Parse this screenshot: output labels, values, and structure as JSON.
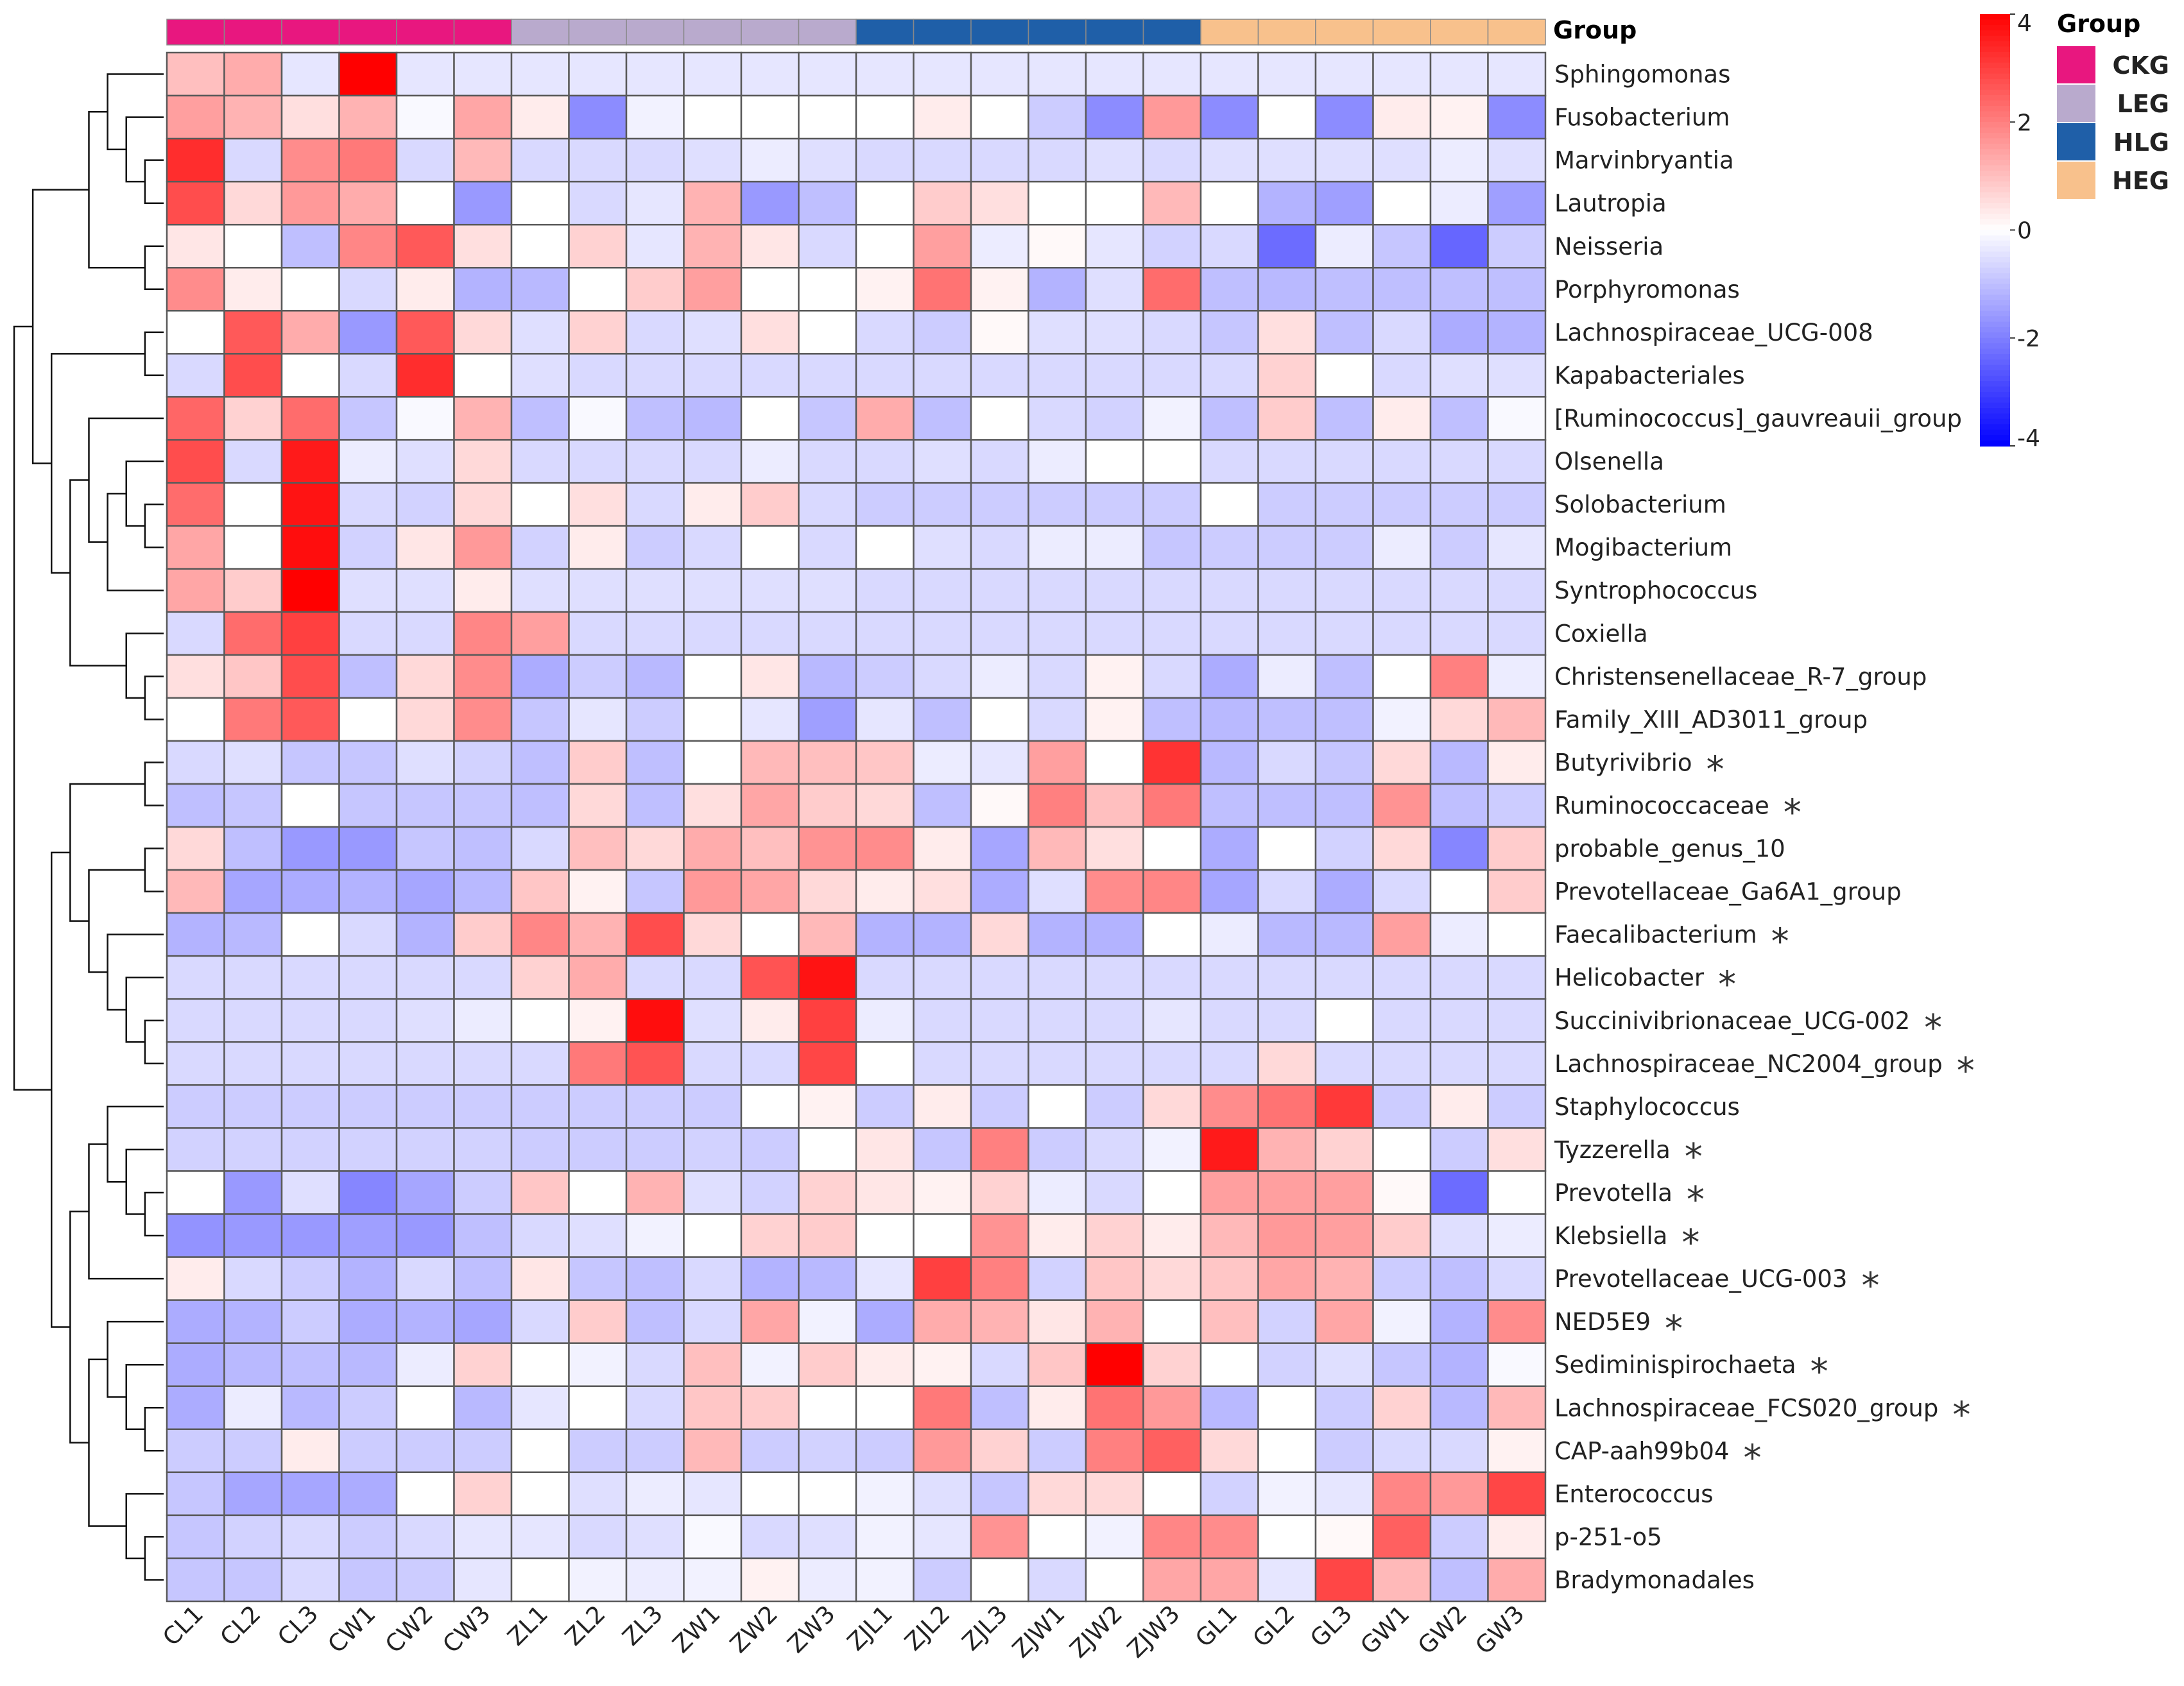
{
  "chart_data": {
    "type": "heatmap",
    "title": "",
    "color_scale": {
      "min": -4,
      "max": 4,
      "low": "#0000ff",
      "mid": "#ffffff",
      "high": "#ff0000",
      "ticks": [
        "4",
        "2",
        "0",
        "-2",
        "-4"
      ]
    },
    "annotation_title": "Group",
    "legend_title": "Group",
    "groups": [
      {
        "name": "CKG",
        "color": "#e8177f"
      },
      {
        "name": "LEG",
        "color": "#b9aacd"
      },
      {
        "name": "HLG",
        "color": "#1f5fa8"
      },
      {
        "name": "HEG",
        "color": "#f8c18c"
      }
    ],
    "columns": [
      "CL1",
      "CL2",
      "CL3",
      "CW1",
      "CW2",
      "CW3",
      "ZL1",
      "ZL2",
      "ZL3",
      "ZW1",
      "ZW2",
      "ZW3",
      "ZJL1",
      "ZJL2",
      "ZJL3",
      "ZJW1",
      "ZJW2",
      "ZJW3",
      "GL1",
      "GL2",
      "GL3",
      "GW1",
      "GW2",
      "GW3"
    ],
    "column_groups": [
      "CKG",
      "CKG",
      "CKG",
      "CKG",
      "CKG",
      "CKG",
      "LEG",
      "LEG",
      "LEG",
      "LEG",
      "LEG",
      "LEG",
      "HLG",
      "HLG",
      "HLG",
      "HLG",
      "HLG",
      "HLG",
      "HEG",
      "HEG",
      "HEG",
      "HEG",
      "HEG",
      "HEG"
    ],
    "rows": [
      {
        "name": "Sphingomonas",
        "sig": "",
        "values": [
          1,
          1.3,
          -0.4,
          4,
          -0.4,
          -0.4,
          -0.4,
          -0.4,
          -0.4,
          -0.4,
          -0.4,
          -0.4,
          -0.4,
          -0.4,
          -0.4,
          -0.4,
          -0.4,
          -0.4,
          -0.4,
          -0.4,
          -0.4,
          -0.4,
          -0.4,
          -0.4
        ]
      },
      {
        "name": "Fusobacterium",
        "sig": "",
        "values": [
          1.5,
          1.2,
          0.5,
          1.2,
          -0.1,
          1.4,
          0.3,
          -1.8,
          -0.2,
          0,
          0,
          0,
          0,
          0.3,
          0,
          -0.8,
          -1.8,
          1.6,
          -1.8,
          0,
          -1.8,
          0.3,
          0.2,
          -1.8
        ]
      },
      {
        "name": "Marvinbryantia",
        "sig": "",
        "values": [
          3.3,
          -0.6,
          1.8,
          2.1,
          -0.6,
          1.1,
          -0.6,
          -0.6,
          -0.6,
          -0.5,
          -0.3,
          -0.5,
          -0.6,
          -0.6,
          -0.6,
          -0.6,
          -0.5,
          -0.6,
          -0.5,
          -0.5,
          -0.5,
          -0.5,
          -0.3,
          -0.5
        ]
      },
      {
        "name": "Lautropia",
        "sig": "",
        "values": [
          2.8,
          0.6,
          1.6,
          1.3,
          0,
          -1.6,
          0,
          -0.6,
          -0.4,
          1.2,
          -1.6,
          -1,
          0,
          0.8,
          0.5,
          0,
          0,
          1.1,
          0,
          -1.2,
          -1.5,
          0,
          -0.3,
          -1.5
        ]
      },
      {
        "name": "Neisseria",
        "sig": "",
        "values": [
          0.4,
          0,
          -1,
          1.9,
          2.6,
          0.5,
          0,
          0.7,
          -0.4,
          1.2,
          0.4,
          -0.6,
          0,
          1.5,
          -0.3,
          0.1,
          -0.4,
          -0.7,
          -0.6,
          -2.3,
          -0.3,
          -0.9,
          -2.4,
          -0.8
        ]
      },
      {
        "name": "Porphyromonas",
        "sig": "",
        "values": [
          1.8,
          0.3,
          0,
          -0.6,
          0.3,
          -1.2,
          -1.1,
          0,
          0.8,
          1.5,
          0,
          0,
          0.2,
          2.2,
          0.2,
          -1.2,
          -0.5,
          2.3,
          -1,
          -1.1,
          -1,
          -1,
          -1,
          -1
        ]
      },
      {
        "name": "Lachnospiraceae_UCG-008",
        "sig": "",
        "values": [
          0,
          2.6,
          1.3,
          -1.6,
          2.6,
          0.6,
          -0.5,
          0.7,
          -0.6,
          -0.5,
          0.5,
          0,
          -0.6,
          -0.8,
          0.1,
          -0.5,
          -0.5,
          -0.6,
          -0.9,
          0.5,
          -1,
          -0.6,
          -1.3,
          -1.2
        ]
      },
      {
        "name": "Kapabacteriales",
        "sig": "",
        "values": [
          -0.6,
          2.8,
          0,
          -0.6,
          3.3,
          0,
          -0.5,
          -0.6,
          -0.6,
          -0.6,
          -0.6,
          -0.6,
          -0.6,
          -0.6,
          -0.6,
          -0.6,
          -0.6,
          -0.6,
          -0.6,
          0.7,
          0,
          -0.6,
          -0.5,
          -0.5
        ]
      },
      {
        "name": "[Ruminococcus]_gauvreauii_group",
        "sig": "",
        "values": [
          2.4,
          0.7,
          2.3,
          -0.9,
          -0.1,
          1.2,
          -1,
          -0.1,
          -1,
          -1.1,
          0,
          -0.9,
          1.3,
          -1,
          0,
          -0.6,
          -0.7,
          -0.2,
          -1,
          0.8,
          -1,
          0.3,
          -1,
          -0.1
        ]
      },
      {
        "name": "Olsenella",
        "sig": "",
        "values": [
          2.8,
          -0.6,
          3.6,
          -0.3,
          -0.5,
          0.6,
          -0.6,
          -0.6,
          -0.6,
          -0.6,
          -0.3,
          -0.6,
          -0.6,
          -0.5,
          -0.6,
          -0.3,
          0,
          0,
          -0.6,
          -0.6,
          -0.6,
          -0.6,
          -0.6,
          -0.6
        ]
      },
      {
        "name": "Solobacterium",
        "sig": "",
        "values": [
          2.3,
          0,
          3.7,
          -0.6,
          -0.7,
          0.6,
          0,
          0.5,
          -0.6,
          0.3,
          0.8,
          -0.6,
          -0.8,
          -0.8,
          -0.8,
          -0.8,
          -0.8,
          -0.8,
          0,
          -0.8,
          -0.8,
          -0.8,
          -0.8,
          -0.8
        ]
      },
      {
        "name": "Mogibacterium",
        "sig": "",
        "values": [
          1.4,
          0,
          3.8,
          -0.7,
          0.4,
          1.6,
          -0.7,
          0.3,
          -0.8,
          -0.6,
          0,
          -0.6,
          0,
          -0.5,
          -0.6,
          -0.3,
          -0.3,
          -0.9,
          -0.8,
          -0.8,
          -0.8,
          -0.3,
          -0.8,
          -0.4
        ]
      },
      {
        "name": "Syntrophococcus",
        "sig": "",
        "values": [
          1.4,
          0.8,
          4,
          -0.5,
          -0.5,
          0.3,
          -0.5,
          -0.5,
          -0.5,
          -0.5,
          -0.5,
          -0.5,
          -0.6,
          -0.6,
          -0.6,
          -0.6,
          -0.6,
          -0.6,
          -0.6,
          -0.6,
          -0.6,
          -0.6,
          -0.6,
          -0.6
        ]
      },
      {
        "name": "Coxiella",
        "sig": "",
        "values": [
          -0.6,
          2.3,
          3,
          -0.6,
          -0.6,
          1.9,
          1.5,
          -0.6,
          -0.6,
          -0.6,
          -0.6,
          -0.6,
          -0.6,
          -0.6,
          -0.6,
          -0.6,
          -0.6,
          -0.6,
          -0.6,
          -0.6,
          -0.6,
          -0.6,
          -0.6,
          -0.6
        ]
      },
      {
        "name": "Christensenellaceae_R-7_group",
        "sig": "",
        "values": [
          0.5,
          0.9,
          2.8,
          -1,
          0.6,
          1.8,
          -1.3,
          -0.8,
          -1.1,
          0,
          0.4,
          -1.1,
          -0.8,
          -0.6,
          -0.3,
          -0.6,
          0.2,
          -0.6,
          -1.3,
          -0.3,
          -1,
          0,
          2,
          -0.3
        ]
      },
      {
        "name": "Family_XIII_AD3011_group",
        "sig": "",
        "values": [
          0,
          2.1,
          2.6,
          0,
          0.6,
          1.8,
          -0.9,
          -0.4,
          -0.8,
          0,
          -0.4,
          -1.5,
          -0.4,
          -1,
          0,
          -0.6,
          0.2,
          -1,
          -1.1,
          -1,
          -1,
          -0.2,
          0.6,
          1.1
        ]
      },
      {
        "name": "Butyrivibrio",
        "sig": "*",
        "values": [
          -0.6,
          -0.5,
          -0.9,
          -0.9,
          -0.5,
          -0.7,
          -1,
          0.8,
          -1,
          0,
          1.1,
          1,
          0.9,
          -0.3,
          -0.4,
          1.5,
          0,
          3.2,
          -1.1,
          -0.6,
          -0.9,
          0.6,
          -1.1,
          0.3
        ]
      },
      {
        "name": "Ruminococcaceae",
        "sig": "*",
        "values": [
          -1,
          -0.9,
          0,
          -0.9,
          -0.9,
          -0.9,
          -1,
          0.6,
          -1,
          0.5,
          1.4,
          0.8,
          0.6,
          -1,
          0.1,
          2,
          1,
          2.1,
          -1,
          -1,
          -1,
          1.7,
          -1,
          -0.8
        ]
      },
      {
        "name": "probable_genus_10",
        "sig": "",
        "values": [
          0.6,
          -1,
          -1.6,
          -1.6,
          -0.9,
          -1,
          -0.6,
          1,
          0.6,
          1.3,
          1,
          1.7,
          1.8,
          0.3,
          -1.4,
          1.1,
          0.5,
          0,
          -1.3,
          0,
          -0.7,
          0.6,
          -1.9,
          0.8
        ]
      },
      {
        "name": "Prevotellaceae_Ga6A1_group",
        "sig": "",
        "values": [
          1.1,
          -1.4,
          -1.3,
          -1.2,
          -1.4,
          -1.1,
          0.9,
          0.2,
          -0.9,
          1.6,
          1.4,
          0.6,
          0.3,
          0.5,
          -1.3,
          -0.5,
          1.8,
          1.9,
          -1.4,
          -0.6,
          -1.3,
          -0.6,
          0,
          0.8
        ]
      },
      {
        "name": "Faecalibacterium",
        "sig": "*",
        "values": [
          -1.2,
          -1.1,
          0,
          -0.6,
          -1.2,
          0.8,
          1.9,
          1.2,
          2.8,
          0.6,
          0,
          1.1,
          -1.2,
          -1.2,
          0.6,
          -1.2,
          -1.2,
          0,
          -0.3,
          -1.1,
          -1.1,
          1.5,
          -0.3,
          0
        ]
      },
      {
        "name": "Helicobacter",
        "sig": "*",
        "values": [
          -0.6,
          -0.6,
          -0.6,
          -0.6,
          -0.6,
          -0.6,
          0.7,
          1.3,
          -0.6,
          -0.6,
          2.7,
          3.7,
          -0.6,
          -0.6,
          -0.6,
          -0.6,
          -0.6,
          -0.6,
          -0.6,
          -0.6,
          -0.6,
          -0.6,
          -0.6,
          -0.6
        ]
      },
      {
        "name": "Succinivibrionaceae_UCG-002",
        "sig": "*",
        "values": [
          -0.6,
          -0.6,
          -0.6,
          -0.6,
          -0.5,
          -0.3,
          0,
          0.2,
          3.8,
          -0.5,
          0.3,
          3,
          -0.3,
          -0.6,
          -0.6,
          -0.6,
          -0.6,
          -0.4,
          -0.6,
          -0.6,
          0,
          -0.6,
          -0.6,
          -0.6
        ]
      },
      {
        "name": "Lachnospiraceae_NC2004_group",
        "sig": "*",
        "values": [
          -0.6,
          -0.6,
          -0.6,
          -0.6,
          -0.6,
          -0.6,
          -0.6,
          2.1,
          2.7,
          -0.6,
          -0.6,
          2.9,
          0,
          -0.6,
          -0.6,
          -0.6,
          -0.6,
          -0.6,
          -0.6,
          0.6,
          -0.6,
          -0.6,
          -0.6,
          -0.6
        ]
      },
      {
        "name": "Staphylococcus",
        "sig": "",
        "values": [
          -0.8,
          -0.8,
          -0.8,
          -0.8,
          -0.8,
          -0.8,
          -0.8,
          -0.8,
          -0.8,
          -0.8,
          0,
          0.2,
          -0.8,
          0.3,
          -0.8,
          0,
          -0.8,
          0.6,
          1.8,
          2.2,
          3.1,
          -0.8,
          0.3,
          -0.8
        ]
      },
      {
        "name": "Tyzzerella",
        "sig": "*",
        "values": [
          -0.7,
          -0.7,
          -0.7,
          -0.7,
          -0.7,
          -0.7,
          -0.8,
          -0.8,
          -0.8,
          -0.7,
          -0.8,
          0,
          0.4,
          -0.9,
          2,
          -0.8,
          -0.6,
          -0.2,
          3.6,
          1.2,
          0.7,
          0,
          -0.8,
          0.5
        ]
      },
      {
        "name": "Prevotella",
        "sig": "*",
        "values": [
          0,
          -1.6,
          -0.5,
          -1.9,
          -1.4,
          -0.8,
          0.9,
          0,
          1.2,
          -0.5,
          -0.7,
          0.7,
          0.4,
          0.2,
          0.7,
          -0.3,
          -0.6,
          0,
          1.5,
          1.5,
          1.5,
          0.1,
          -2.3,
          0
        ]
      },
      {
        "name": "Klebsiella",
        "sig": "*",
        "values": [
          -1.7,
          -1.6,
          -1.6,
          -1.5,
          -1.6,
          -1,
          -0.6,
          -0.5,
          -0.2,
          0,
          0.7,
          0.8,
          0,
          0,
          1.7,
          0.3,
          0.7,
          0.3,
          1.1,
          1.6,
          1.5,
          0.8,
          -0.5,
          -0.3
        ]
      },
      {
        "name": "Prevotellaceae_UCG-003",
        "sig": "*",
        "values": [
          0.3,
          -0.6,
          -0.8,
          -1.2,
          -0.6,
          -1,
          0.4,
          -0.9,
          -1,
          -0.6,
          -1.2,
          -1.1,
          -0.4,
          3,
          2,
          -0.7,
          0.9,
          0.6,
          0.9,
          1.4,
          1.2,
          -0.8,
          -1,
          -0.6
        ]
      },
      {
        "name": "NED5E9",
        "sig": "*",
        "values": [
          -1.3,
          -1.2,
          -0.8,
          -1.3,
          -1.2,
          -1.4,
          -0.6,
          0.8,
          -1,
          -0.6,
          1.4,
          -0.2,
          -1.3,
          1.3,
          1.2,
          0.4,
          1.2,
          0,
          1,
          -0.7,
          1.4,
          -0.2,
          -1.2,
          1.8
        ]
      },
      {
        "name": "Sediminispirochaeta",
        "sig": "*",
        "values": [
          -1.3,
          -1.1,
          -1,
          -1.1,
          -0.3,
          0.7,
          0,
          -0.2,
          -0.6,
          1,
          -0.2,
          0.8,
          0.3,
          0.2,
          -0.6,
          0.9,
          4,
          0.7,
          0,
          -0.7,
          -0.5,
          -0.9,
          -1.2,
          -0.1
        ]
      },
      {
        "name": "Lachnospiraceae_FCS020_group",
        "sig": "*",
        "values": [
          -1.3,
          -0.3,
          -1.1,
          -0.8,
          0,
          -1.1,
          -0.4,
          0,
          -0.6,
          0.9,
          0.8,
          0,
          0,
          2.1,
          -1,
          0.3,
          2.2,
          1.6,
          -1.1,
          0,
          -0.8,
          0.7,
          -1.1,
          1.1
        ]
      },
      {
        "name": "CAP-aah99b04",
        "sig": "*",
        "values": [
          -0.8,
          -0.8,
          0.3,
          -0.8,
          -0.8,
          -0.8,
          0,
          -0.8,
          -0.8,
          1.1,
          -0.8,
          -0.7,
          -0.8,
          1.6,
          0.7,
          -0.8,
          2,
          2.5,
          0.6,
          0,
          -0.8,
          -0.6,
          -0.6,
          0.2
        ]
      },
      {
        "name": "Enterococcus",
        "sig": "",
        "values": [
          -0.9,
          -1.4,
          -1.4,
          -1.3,
          0,
          0.7,
          0,
          -0.5,
          -0.3,
          -0.4,
          0,
          0,
          -0.2,
          -0.5,
          -0.9,
          0.6,
          0.6,
          0,
          -0.7,
          -0.2,
          -0.4,
          1.9,
          1.6,
          2.9
        ]
      },
      {
        "name": "p-251-o5",
        "sig": "",
        "values": [
          -0.9,
          -0.7,
          -0.6,
          -0.8,
          -0.6,
          -0.4,
          -0.4,
          -0.6,
          -0.5,
          -0.1,
          -0.6,
          -0.5,
          -0.2,
          -0.4,
          1.7,
          0,
          -0.2,
          1.9,
          1.8,
          0,
          0.1,
          2.5,
          -0.8,
          0.3
        ]
      },
      {
        "name": "Bradymonadales",
        "sig": "",
        "values": [
          -0.9,
          -0.9,
          -0.6,
          -0.9,
          -0.8,
          -0.4,
          0,
          -0.2,
          -0.3,
          -0.2,
          0.2,
          -0.3,
          -0.2,
          -0.8,
          0,
          -0.6,
          0,
          1.4,
          1.4,
          -0.4,
          2.9,
          1.1,
          -1,
          1.3
        ]
      }
    ]
  }
}
